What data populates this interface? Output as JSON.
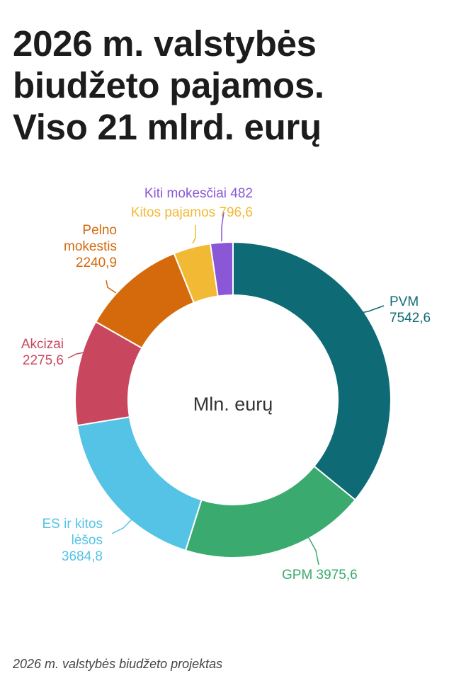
{
  "title": {
    "line1": "2026 m. valstybės",
    "line2": "biudžeto pajamos.",
    "line3": "Viso 21 mlrd. eurų"
  },
  "chart_data": {
    "type": "pie",
    "center_label": "Mln. eurų",
    "slices": [
      {
        "label_lines": [
          "PVM",
          "7542,6"
        ],
        "value": 7542.6,
        "color": "#0e6b75",
        "anchor": "start"
      },
      {
        "label_lines": [
          "GPM 3975,6"
        ],
        "value": 3975.6,
        "color": "#3aaa6e",
        "anchor": "start"
      },
      {
        "label_lines": [
          "ES ir kitos",
          "lėšos",
          "3684,8"
        ],
        "value": 3684.8,
        "color": "#55c3e6",
        "anchor": "end"
      },
      {
        "label_lines": [
          "Akcizai",
          "2275,6"
        ],
        "value": 2275.6,
        "color": "#c9475e",
        "anchor": "end"
      },
      {
        "label_lines": [
          "Pelno",
          "mokestis",
          "2240,9"
        ],
        "value": 2240.9,
        "color": "#d46a0c",
        "anchor": "end"
      },
      {
        "label_lines": [
          "Kitos pajamos 796,6"
        ],
        "value": 796.6,
        "color": "#f2b935",
        "anchor": "end"
      },
      {
        "label_lines": [
          "Kiti mokesčiai 482"
        ],
        "value": 482,
        "color": "#8a57d6",
        "anchor": "end"
      }
    ]
  },
  "source": "2026 m. valstybės biudžeto projektas"
}
